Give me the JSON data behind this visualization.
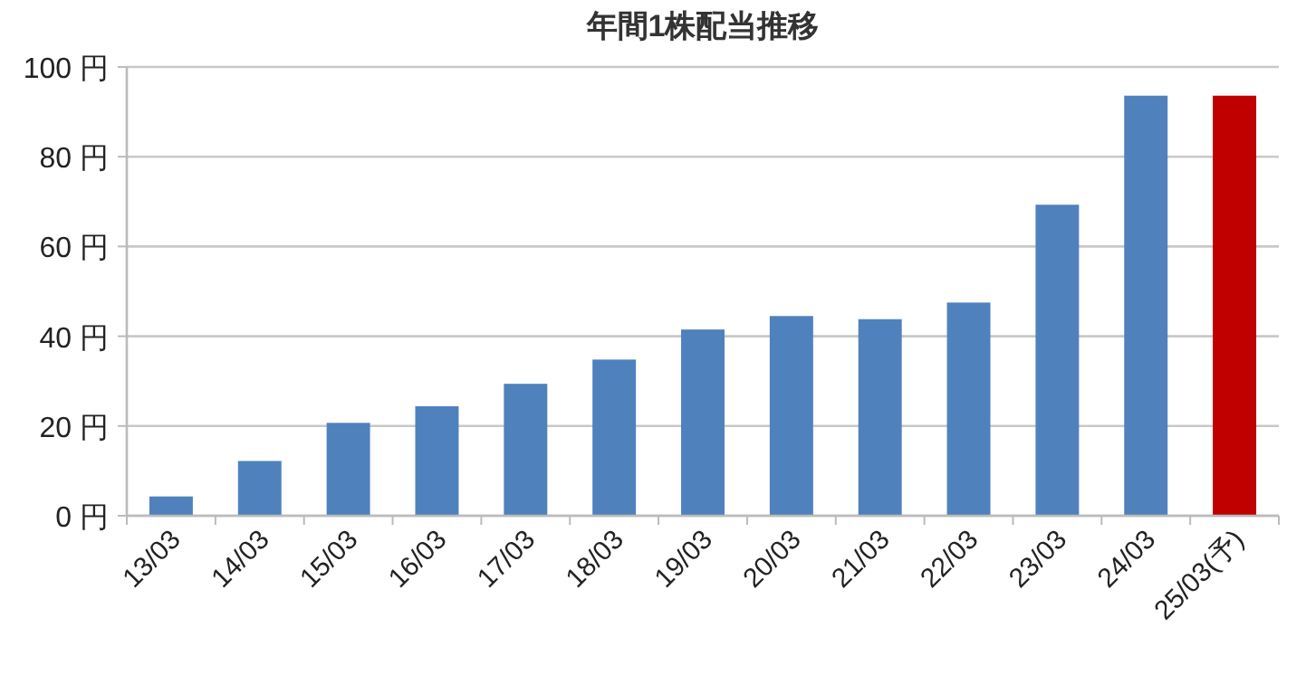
{
  "chart_data": {
    "type": "bar",
    "title": "年間1株配当推移",
    "categories": [
      "13/03",
      "14/03",
      "15/03",
      "16/03",
      "17/03",
      "18/03",
      "19/03",
      "20/03",
      "21/03",
      "22/03",
      "23/03",
      "24/03",
      "25/03(予)"
    ],
    "values": [
      4.3,
      12.2,
      20.7,
      24.4,
      29.4,
      34.8,
      41.5,
      44.5,
      43.8,
      47.5,
      69.3,
      93.6,
      93.6
    ],
    "colors": [
      "#4f81bd",
      "#4f81bd",
      "#4f81bd",
      "#4f81bd",
      "#4f81bd",
      "#4f81bd",
      "#4f81bd",
      "#4f81bd",
      "#4f81bd",
      "#4f81bd",
      "#4f81bd",
      "#4f81bd",
      "#c00000"
    ],
    "ylim": [
      0,
      100
    ],
    "yticks": [
      {
        "value": 0,
        "label": "0 円"
      },
      {
        "value": 20,
        "label": "20 円"
      },
      {
        "value": 40,
        "label": "40 円"
      },
      {
        "value": 60,
        "label": "60 円"
      },
      {
        "value": 80,
        "label": "80 円"
      },
      {
        "value": 100,
        "label": "100 円"
      }
    ],
    "grid": "y"
  }
}
